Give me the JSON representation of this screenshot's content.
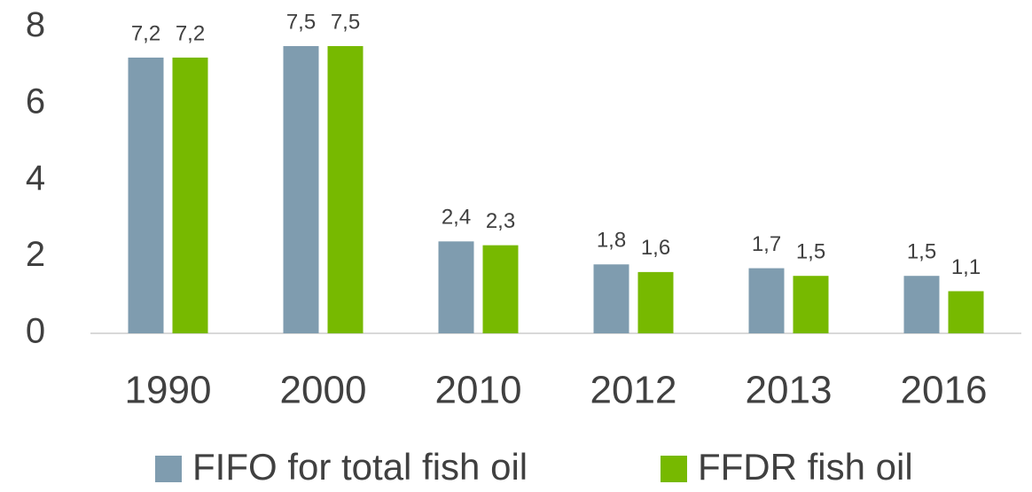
{
  "chart_data": {
    "type": "bar",
    "categories": [
      "1990",
      "2000",
      "2010",
      "2012",
      "2013",
      "2016"
    ],
    "series": [
      {
        "name": "FIFO for total fish oil",
        "color": "#7f9caf",
        "values": [
          7.2,
          7.5,
          2.4,
          1.8,
          1.7,
          1.5
        ],
        "value_labels": [
          "7,2",
          "7,5",
          "2,4",
          "1,8",
          "1,7",
          "1,5"
        ]
      },
      {
        "name": "FFDR fish oil",
        "color": "#77b900",
        "values": [
          7.2,
          7.5,
          2.3,
          1.6,
          1.5,
          1.1
        ],
        "value_labels": [
          "7,2",
          "7,5",
          "2,3",
          "1,6",
          "1,5",
          "1,1"
        ]
      }
    ],
    "ylim": [
      0,
      8
    ],
    "yticks": [
      0,
      2,
      4,
      6,
      8
    ],
    "grid": false
  }
}
